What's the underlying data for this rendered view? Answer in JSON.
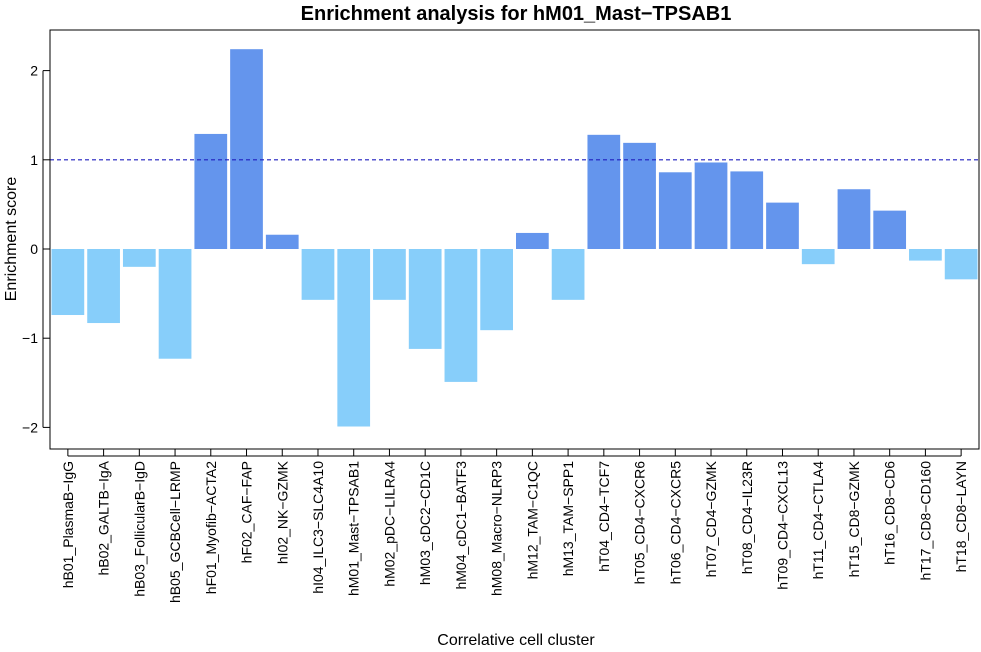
{
  "chart_data": {
    "type": "bar",
    "title": "Enrichment analysis for hM01_Mast−TPSAB1",
    "xlabel": "Correlative cell cluster",
    "ylabel": "Enrichment score",
    "ylim": [
      -2.2,
      2.5
    ],
    "yticks": [
      -2,
      -1,
      0,
      1,
      2
    ],
    "yticklabels": [
      "−2",
      "−1",
      "0",
      "1",
      "2"
    ],
    "reference_line": {
      "y": 1,
      "style": "dashed",
      "color": "#1f1fbf"
    },
    "grid": false,
    "colors": {
      "positive": "#6495ED",
      "negative": "#87CEFA"
    },
    "categories": [
      "hB01_PlasmaB−IgG",
      "hB02_GALTB−IgA",
      "hB03_FollicularB−IgD",
      "hB05_GCBCell−LRMP",
      "hF01_Myofib−ACTA2",
      "hF02_CAF−FAP",
      "hI02_NK−GZMK",
      "hI04_ILC3−SLC4A10",
      "hM01_Mast−TPSAB1",
      "hM02_pDC−LILRA4",
      "hM03_cDC2−CD1C",
      "hM04_cDC1−BATF3",
      "hM08_Macro−NLRP3",
      "hM12_TAM−C1QC",
      "hM13_TAM−SPP1",
      "hT04_CD4−TCF7",
      "hT05_CD4−CXCR6",
      "hT06_CD4−CXCR5",
      "hT07_CD4−GZMK",
      "hT08_CD4−IL23R",
      "hT09_CD4−CXCL13",
      "hT11_CD4−CTLA4",
      "hT15_CD8−GZMK",
      "hT16_CD8−CD6",
      "hT17_CD8−CD160",
      "hT18_CD8−LAYN"
    ],
    "values": [
      -0.74,
      -0.83,
      -0.2,
      -1.23,
      1.29,
      2.24,
      0.16,
      -0.57,
      -1.99,
      -0.57,
      -1.12,
      -1.49,
      -0.91,
      0.18,
      -0.57,
      1.28,
      1.19,
      0.86,
      0.97,
      0.87,
      0.52,
      -0.17,
      0.67,
      0.43,
      -0.13,
      -0.34
    ]
  }
}
